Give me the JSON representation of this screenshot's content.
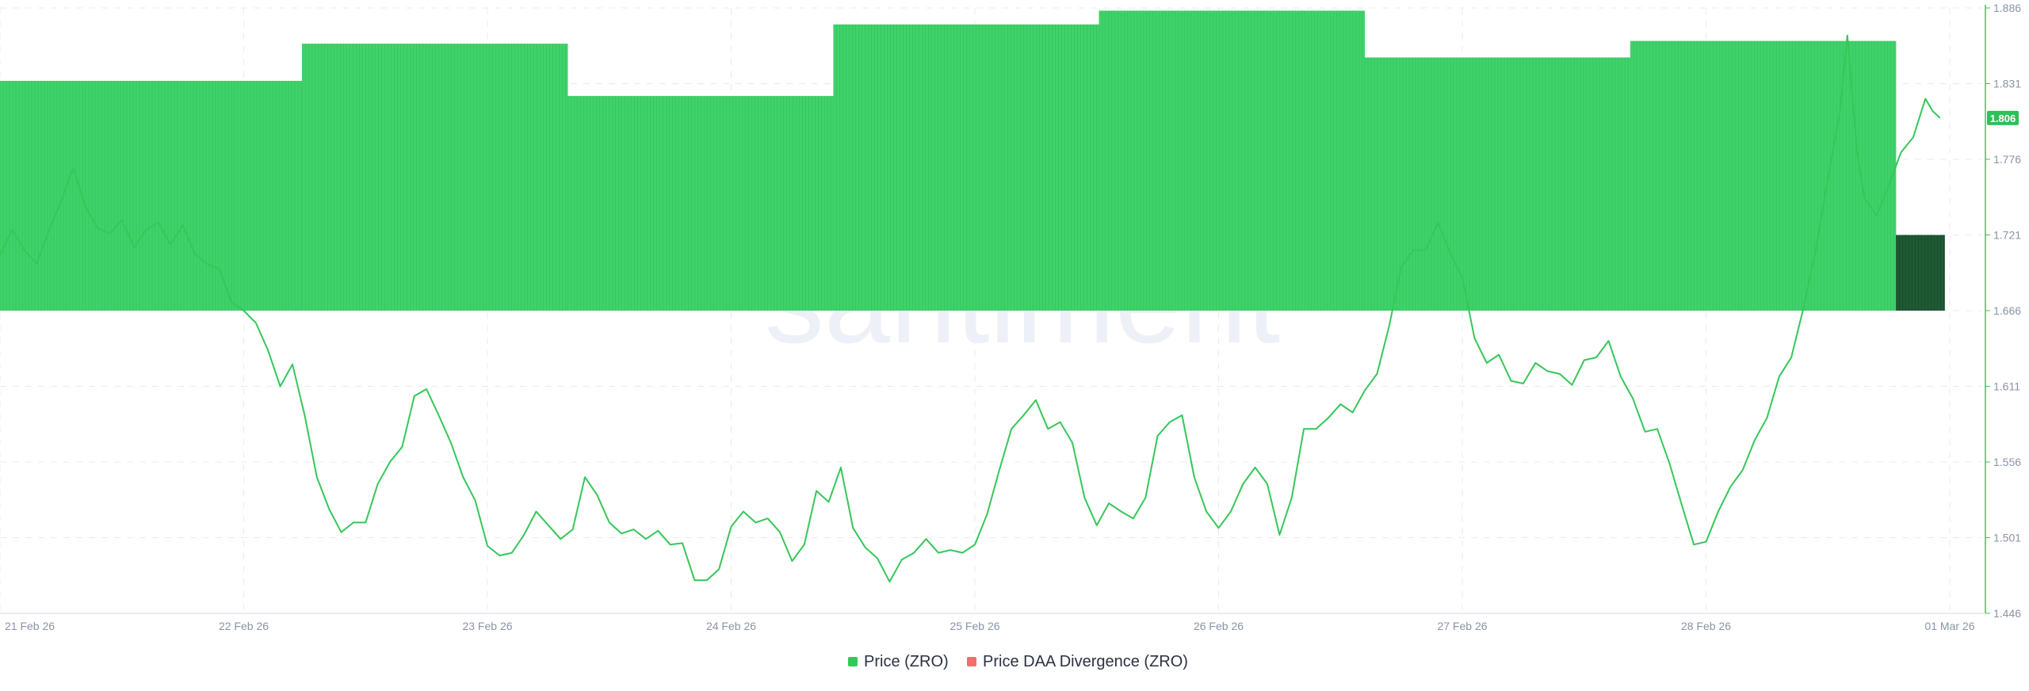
{
  "watermark": "santiment",
  "colors": {
    "price_line": "#35c759",
    "divergence_positive": "#3fd26a",
    "divergence_partial": "#1f5a34",
    "divergence_negative": "#f26d6d",
    "grid": "#e8ebf2",
    "axis_text": "#8a93a6",
    "price_badge_bg": "#2ec05a",
    "price_badge_text": "#ffffff"
  },
  "chart_data": {
    "type": "line",
    "x_axis": {
      "tick_labels": [
        "21 Feb 26",
        "22 Feb 26",
        "23 Feb 26",
        "24 Feb 26",
        "25 Feb 26",
        "26 Feb 26",
        "27 Feb 26",
        "28 Feb 26",
        "01 Mar 26"
      ],
      "range_days": [
        0,
        8
      ]
    },
    "y_axis": {
      "position": "right",
      "tick_labels": [
        "1.886",
        "1.831",
        "1.776",
        "1.721",
        "1.666",
        "1.611",
        "1.556",
        "1.501",
        "1.446"
      ],
      "ylim": [
        1.446,
        1.886
      ]
    },
    "current_price_label": "1.806",
    "current_price_value": 1.806,
    "legend": {
      "placement": "bottom-center",
      "items": [
        {
          "label": "Price (ZRO)",
          "color": "#35c759"
        },
        {
          "label": "Price DAA Divergence (ZRO)",
          "color": "#f26d6d"
        }
      ]
    },
    "divergence_baseline": 1.666,
    "divergence_segments": [
      {
        "start": 0.0,
        "end": 1.24,
        "top": 1.833,
        "state": "positive"
      },
      {
        "start": 1.24,
        "end": 2.33,
        "top": 1.86,
        "state": "positive"
      },
      {
        "start": 2.33,
        "end": 3.42,
        "top": 1.822,
        "state": "positive"
      },
      {
        "start": 3.42,
        "end": 4.51,
        "top": 1.874,
        "state": "positive"
      },
      {
        "start": 4.51,
        "end": 5.6,
        "top": 1.884,
        "state": "positive"
      },
      {
        "start": 5.6,
        "end": 6.69,
        "top": 1.85,
        "state": "positive"
      },
      {
        "start": 6.69,
        "end": 7.78,
        "top": 1.862,
        "state": "positive"
      },
      {
        "start": 7.78,
        "end": 7.98,
        "top": 1.721,
        "state": "partial"
      }
    ],
    "series": [
      {
        "name": "Price (ZRO)",
        "points": [
          [
            0.0,
            1.706
          ],
          [
            0.05,
            1.725
          ],
          [
            0.1,
            1.71
          ],
          [
            0.15,
            1.7
          ],
          [
            0.2,
            1.724
          ],
          [
            0.25,
            1.745
          ],
          [
            0.3,
            1.77
          ],
          [
            0.35,
            1.742
          ],
          [
            0.4,
            1.726
          ],
          [
            0.45,
            1.722
          ],
          [
            0.5,
            1.732
          ],
          [
            0.55,
            1.712
          ],
          [
            0.6,
            1.725
          ],
          [
            0.65,
            1.73
          ],
          [
            0.7,
            1.714
          ],
          [
            0.75,
            1.728
          ],
          [
            0.8,
            1.707
          ],
          [
            0.85,
            1.7
          ],
          [
            0.9,
            1.696
          ],
          [
            0.95,
            1.672
          ],
          [
            1.0,
            1.666
          ],
          [
            1.05,
            1.657
          ],
          [
            1.1,
            1.637
          ],
          [
            1.15,
            1.611
          ],
          [
            1.2,
            1.627
          ],
          [
            1.25,
            1.59
          ],
          [
            1.3,
            1.545
          ],
          [
            1.35,
            1.522
          ],
          [
            1.4,
            1.505
          ],
          [
            1.45,
            1.512
          ],
          [
            1.5,
            1.512
          ],
          [
            1.55,
            1.54
          ],
          [
            1.6,
            1.556
          ],
          [
            1.65,
            1.567
          ],
          [
            1.7,
            1.604
          ],
          [
            1.75,
            1.609
          ],
          [
            1.8,
            1.59
          ],
          [
            1.85,
            1.57
          ],
          [
            1.9,
            1.545
          ],
          [
            1.95,
            1.528
          ],
          [
            2.0,
            1.495
          ],
          [
            2.05,
            1.488
          ],
          [
            2.1,
            1.49
          ],
          [
            2.15,
            1.503
          ],
          [
            2.2,
            1.52
          ],
          [
            2.25,
            1.51
          ],
          [
            2.3,
            1.5
          ],
          [
            2.35,
            1.507
          ],
          [
            2.4,
            1.545
          ],
          [
            2.45,
            1.532
          ],
          [
            2.5,
            1.512
          ],
          [
            2.55,
            1.504
          ],
          [
            2.6,
            1.507
          ],
          [
            2.65,
            1.5
          ],
          [
            2.7,
            1.506
          ],
          [
            2.75,
            1.496
          ],
          [
            2.8,
            1.497
          ],
          [
            2.85,
            1.47
          ],
          [
            2.9,
            1.47
          ],
          [
            2.95,
            1.478
          ],
          [
            3.0,
            1.509
          ],
          [
            3.05,
            1.52
          ],
          [
            3.1,
            1.512
          ],
          [
            3.15,
            1.515
          ],
          [
            3.2,
            1.505
          ],
          [
            3.25,
            1.484
          ],
          [
            3.3,
            1.496
          ],
          [
            3.35,
            1.535
          ],
          [
            3.4,
            1.527
          ],
          [
            3.45,
            1.552
          ],
          [
            3.5,
            1.508
          ],
          [
            3.55,
            1.494
          ],
          [
            3.6,
            1.486
          ],
          [
            3.65,
            1.469
          ],
          [
            3.7,
            1.485
          ],
          [
            3.75,
            1.49
          ],
          [
            3.8,
            1.5
          ],
          [
            3.85,
            1.49
          ],
          [
            3.9,
            1.492
          ],
          [
            3.95,
            1.49
          ],
          [
            4.0,
            1.496
          ],
          [
            4.05,
            1.518
          ],
          [
            4.1,
            1.55
          ],
          [
            4.15,
            1.58
          ],
          [
            4.2,
            1.59
          ],
          [
            4.25,
            1.601
          ],
          [
            4.3,
            1.58
          ],
          [
            4.35,
            1.585
          ],
          [
            4.4,
            1.57
          ],
          [
            4.45,
            1.53
          ],
          [
            4.5,
            1.51
          ],
          [
            4.55,
            1.526
          ],
          [
            4.6,
            1.52
          ],
          [
            4.65,
            1.515
          ],
          [
            4.7,
            1.53
          ],
          [
            4.75,
            1.575
          ],
          [
            4.8,
            1.585
          ],
          [
            4.85,
            1.59
          ],
          [
            4.9,
            1.545
          ],
          [
            4.95,
            1.52
          ],
          [
            5.0,
            1.508
          ],
          [
            5.05,
            1.52
          ],
          [
            5.1,
            1.54
          ],
          [
            5.15,
            1.552
          ],
          [
            5.2,
            1.54
          ],
          [
            5.25,
            1.503
          ],
          [
            5.3,
            1.53
          ],
          [
            5.35,
            1.58
          ],
          [
            5.4,
            1.58
          ],
          [
            5.45,
            1.588
          ],
          [
            5.5,
            1.598
          ],
          [
            5.55,
            1.592
          ],
          [
            5.6,
            1.608
          ],
          [
            5.65,
            1.62
          ],
          [
            5.7,
            1.655
          ],
          [
            5.75,
            1.698
          ],
          [
            5.8,
            1.71
          ],
          [
            5.85,
            1.71
          ],
          [
            5.9,
            1.73
          ],
          [
            5.95,
            1.708
          ],
          [
            6.0,
            1.69
          ],
          [
            6.05,
            1.646
          ],
          [
            6.1,
            1.628
          ],
          [
            6.15,
            1.634
          ],
          [
            6.2,
            1.615
          ],
          [
            6.25,
            1.613
          ],
          [
            6.3,
            1.628
          ],
          [
            6.35,
            1.622
          ],
          [
            6.4,
            1.62
          ],
          [
            6.45,
            1.612
          ],
          [
            6.5,
            1.63
          ],
          [
            6.55,
            1.632
          ],
          [
            6.6,
            1.644
          ],
          [
            6.65,
            1.618
          ],
          [
            6.7,
            1.602
          ],
          [
            6.75,
            1.578
          ],
          [
            6.8,
            1.58
          ],
          [
            6.85,
            1.555
          ],
          [
            6.9,
            1.525
          ],
          [
            6.95,
            1.496
          ],
          [
            7.0,
            1.498
          ],
          [
            7.05,
            1.52
          ],
          [
            7.1,
            1.538
          ],
          [
            7.15,
            1.55
          ],
          [
            7.2,
            1.572
          ],
          [
            7.25,
            1.588
          ],
          [
            7.3,
            1.618
          ],
          [
            7.35,
            1.632
          ],
          [
            7.4,
            1.668
          ],
          [
            7.45,
            1.71
          ],
          [
            7.5,
            1.762
          ],
          [
            7.55,
            1.811
          ],
          [
            7.58,
            1.866
          ],
          [
            7.62,
            1.781
          ],
          [
            7.65,
            1.748
          ],
          [
            7.7,
            1.735
          ],
          [
            7.75,
            1.757
          ],
          [
            7.8,
            1.781
          ],
          [
            7.85,
            1.792
          ],
          [
            7.9,
            1.82
          ],
          [
            7.93,
            1.811
          ],
          [
            7.96,
            1.806
          ]
        ]
      }
    ]
  }
}
